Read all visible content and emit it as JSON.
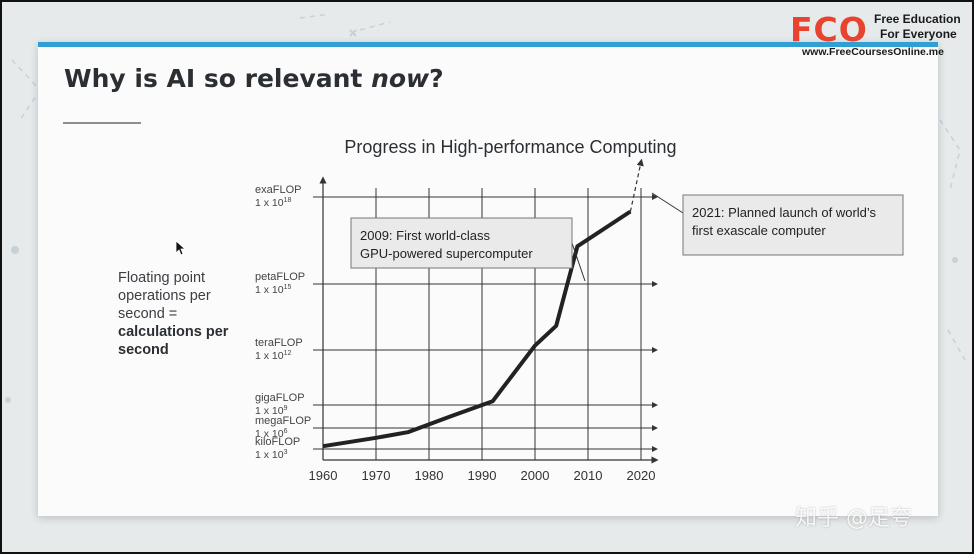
{
  "slide": {
    "title_prefix": "Why is AI so relevant ",
    "title_emph": "now",
    "title_suffix": "?",
    "side_text_1": "Floating point operations per second =",
    "side_text_2": "calculations per second"
  },
  "logo": {
    "mark": "FCO",
    "line1": "Free Education",
    "line2": "For Everyone",
    "url": "www.FreeCoursesOnline.me"
  },
  "watermark": "知乎 @足夸",
  "colors": {
    "accent": "#2f9fd4",
    "logo": "#e8432e",
    "line": "#222222"
  },
  "chart_data": {
    "type": "line",
    "title": "Progress in High-performance Computing",
    "xlabel": "",
    "ylabel": "",
    "xlim": [
      1960,
      2022
    ],
    "x_ticks": [
      1960,
      1970,
      1980,
      1990,
      2000,
      2010,
      2020
    ],
    "y_scale": "log10",
    "ylim": [
      3,
      18
    ],
    "y_ticks": [
      {
        "exp": 18,
        "name": "exaFLOP",
        "value": "1 x 10",
        "sup": "18"
      },
      {
        "exp": 15,
        "name": "petaFLOP",
        "value": "1 x 10",
        "sup": "15"
      },
      {
        "exp": 12,
        "name": "teraFLOP",
        "value": "1 x 10",
        "sup": "12"
      },
      {
        "exp": 9,
        "name": "gigaFLOP",
        "value": "1 x 10",
        "sup": "9"
      },
      {
        "exp": 6,
        "name": "megaFLOP",
        "value": "1 x 10",
        "sup": "6"
      },
      {
        "exp": 3,
        "name": "kiloFLOP",
        "value": "1 x 10",
        "sup": "3"
      }
    ],
    "series": [
      {
        "values": [
          [
            1960,
            3.4
          ],
          [
            1970,
            4.6
          ],
          [
            1976,
            5.4
          ],
          [
            1984,
            7.5
          ],
          [
            1992,
            9.2
          ],
          [
            2000,
            12.2
          ],
          [
            2004,
            13.1
          ],
          [
            2008,
            16.3
          ],
          [
            2018,
            17.5
          ]
        ]
      }
    ],
    "projection": [
      [
        2018,
        17.5
      ],
      [
        2020,
        19.2
      ]
    ],
    "annotations": [
      {
        "text_1": "2009: First world-class",
        "text_2": "GPU-powered supercomputer",
        "x": 2009,
        "y": 16.3
      },
      {
        "text_1": "2021: Planned launch of world’s",
        "text_2": "first exascale computer",
        "x": 2021,
        "y": 19.3
      }
    ]
  }
}
